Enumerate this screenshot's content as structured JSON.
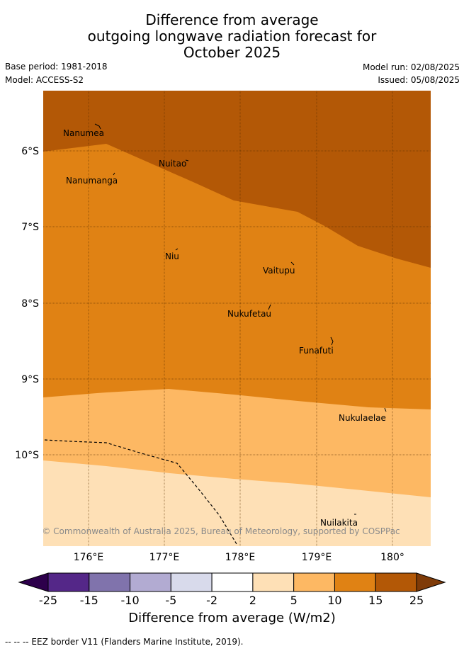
{
  "header": {
    "title_lines": [
      "Difference from average",
      "outgoing longwave radiation forecast for",
      "October 2025"
    ],
    "base_period": "Base period: 1981-2018",
    "model": "Model: ACCESS-S2",
    "model_run": "Model run: 02/08/2025",
    "issued": "Issued: 05/08/2025"
  },
  "map": {
    "lat_labels": [
      "6°S",
      "7°S",
      "8°S",
      "9°S",
      "10°S"
    ],
    "lon_labels": [
      "176°E",
      "177°E",
      "178°E",
      "179°E",
      "180°"
    ],
    "places": [
      {
        "name": "Nanumea"
      },
      {
        "name": "Nuitao"
      },
      {
        "name": "Nanumanga"
      },
      {
        "name": "Niu"
      },
      {
        "name": "Vaitupu"
      },
      {
        "name": "Nukufetau"
      },
      {
        "name": "Funafuti"
      },
      {
        "name": "Nukulaelae"
      },
      {
        "name": "Nuilakita"
      }
    ],
    "copyright": "© Commonwealth of Australia 2025, Bureau of Meteorology, supported by COSPPac",
    "colors": {
      "c15_25": "#b35806",
      "c10_15": "#e08214",
      "c5_10": "#fdb863",
      "c2_5": "#fee0b6",
      "grid": "#5a3000"
    }
  },
  "colorbar": {
    "ticks": [
      "-25",
      "-15",
      "-10",
      "-5",
      "-2",
      "2",
      "5",
      "10",
      "15",
      "25"
    ],
    "colors": [
      "#542788",
      "#8073ac",
      "#b2abd2",
      "#d8daeb",
      "#ffffff",
      "#fee0b6",
      "#fdb863",
      "#e08214",
      "#b35806"
    ],
    "under_color": "#2d004b",
    "over_color": "#7f3b08",
    "title": "Difference from average (W/m2)"
  },
  "legend": {
    "eez": "-- -- -- EEZ border V11 (Flanders Marine Institute, 2019)."
  }
}
